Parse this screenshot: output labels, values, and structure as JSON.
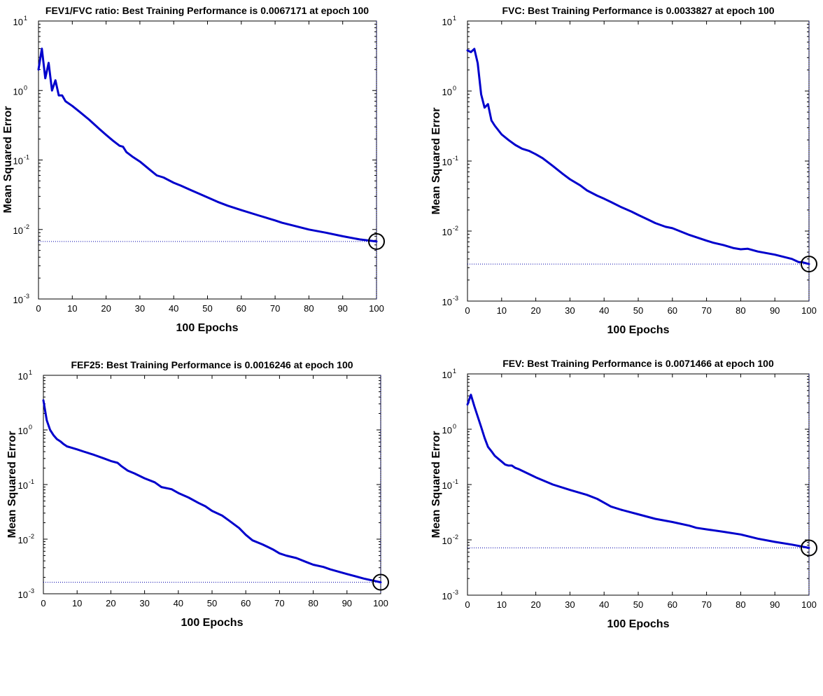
{
  "chart_data": [
    {
      "type": "line",
      "title": "FEV1/FVC ratio: Best Training Performance is 0.0067171 at epoch 100",
      "xlabel": "100 Epochs",
      "ylabel": "Mean Squared Error",
      "xlim": [
        0,
        100
      ],
      "ylim": [
        0.001,
        10
      ],
      "yscale": "log",
      "xticks": [
        "0",
        "10",
        "20",
        "30",
        "40",
        "50",
        "60",
        "70",
        "80",
        "90",
        "100"
      ],
      "ytick_base": "10",
      "ytick_exponents": [
        "1",
        "0",
        "-1",
        "-2",
        "-3"
      ],
      "best": {
        "epoch": 100,
        "value": 0.0067171
      },
      "series": [
        {
          "x": [
            0,
            1,
            2,
            3,
            4,
            5,
            6,
            7,
            8,
            10,
            12,
            15,
            18,
            20,
            22,
            24,
            25,
            26,
            28,
            30,
            33,
            35,
            36,
            37,
            40,
            42,
            45,
            48,
            50,
            53,
            56,
            60,
            65,
            70,
            72,
            75,
            80,
            85,
            90,
            95,
            100
          ],
          "y": [
            2.0,
            4.0,
            1.5,
            2.5,
            1.0,
            1.4,
            0.85,
            0.85,
            0.7,
            0.6,
            0.5,
            0.38,
            0.28,
            0.23,
            0.19,
            0.16,
            0.155,
            0.13,
            0.11,
            0.095,
            0.072,
            0.06,
            0.058,
            0.056,
            0.047,
            0.043,
            0.037,
            0.032,
            0.029,
            0.025,
            0.022,
            0.019,
            0.016,
            0.0135,
            0.0125,
            0.0115,
            0.01,
            0.009,
            0.008,
            0.0072,
            0.0067171
          ]
        }
      ]
    },
    {
      "type": "line",
      "title": "FVC: Best Training Performance is 0.0033827 at epoch 100",
      "xlabel": "100 Epochs",
      "ylabel": "Mean Squared Error",
      "xlim": [
        0,
        100
      ],
      "ylim": [
        0.001,
        10
      ],
      "yscale": "log",
      "xticks": [
        "0",
        "10",
        "20",
        "30",
        "40",
        "50",
        "60",
        "70",
        "80",
        "90",
        "100"
      ],
      "ytick_base": "10",
      "ytick_exponents": [
        "1",
        "0",
        "-1",
        "-2",
        "-3"
      ],
      "best": {
        "epoch": 100,
        "value": 0.0033827
      },
      "series": [
        {
          "x": [
            0,
            1,
            2,
            3,
            4,
            5,
            6,
            7,
            8,
            10,
            12,
            14,
            16,
            18,
            20,
            22,
            25,
            28,
            30,
            33,
            35,
            38,
            40,
            42,
            45,
            48,
            50,
            53,
            55,
            58,
            60,
            65,
            70,
            72,
            75,
            78,
            80,
            82,
            85,
            90,
            95,
            97,
            98,
            100
          ],
          "y": [
            3.8,
            3.6,
            4.0,
            2.5,
            0.9,
            0.58,
            0.65,
            0.38,
            0.32,
            0.24,
            0.2,
            0.17,
            0.15,
            0.14,
            0.125,
            0.11,
            0.085,
            0.065,
            0.055,
            0.045,
            0.038,
            0.032,
            0.029,
            0.026,
            0.022,
            0.019,
            0.017,
            0.0145,
            0.013,
            0.0115,
            0.011,
            0.0088,
            0.0073,
            0.0068,
            0.0063,
            0.0057,
            0.0055,
            0.0056,
            0.0051,
            0.0046,
            0.004,
            0.0036,
            0.0036,
            0.0033827
          ]
        }
      ]
    },
    {
      "type": "line",
      "title": "FEF25: Best Training Performance is 0.0016246 at epoch 100",
      "xlabel": "100 Epochs",
      "ylabel": "Mean Squared Error",
      "xlim": [
        0,
        100
      ],
      "ylim": [
        0.001,
        10
      ],
      "yscale": "log",
      "xticks": [
        "0",
        "10",
        "20",
        "30",
        "40",
        "50",
        "60",
        "70",
        "80",
        "90",
        "100"
      ],
      "ytick_base": "10",
      "ytick_exponents": [
        "1",
        "0",
        "-1",
        "-2",
        "-3"
      ],
      "best": {
        "epoch": 100,
        "value": 0.0016246
      },
      "series": [
        {
          "x": [
            0,
            1,
            2,
            3,
            4,
            5,
            6,
            7,
            8,
            10,
            12,
            15,
            18,
            20,
            22,
            23,
            25,
            27,
            30,
            33,
            35,
            38,
            40,
            43,
            46,
            48,
            50,
            53,
            55,
            58,
            60,
            62,
            65,
            68,
            70,
            72,
            75,
            78,
            80,
            83,
            85,
            90,
            95,
            100
          ],
          "y": [
            3.5,
            1.5,
            1.0,
            0.8,
            0.68,
            0.62,
            0.55,
            0.5,
            0.48,
            0.44,
            0.4,
            0.35,
            0.3,
            0.27,
            0.25,
            0.22,
            0.18,
            0.16,
            0.13,
            0.11,
            0.09,
            0.082,
            0.07,
            0.058,
            0.046,
            0.04,
            0.033,
            0.027,
            0.022,
            0.016,
            0.012,
            0.0095,
            0.008,
            0.0065,
            0.0055,
            0.005,
            0.0045,
            0.0038,
            0.0034,
            0.0031,
            0.0028,
            0.0023,
            0.0019,
            0.0016246
          ]
        }
      ]
    },
    {
      "type": "line",
      "title": "FEV: Best Training Performance is 0.0071466 at epoch 100",
      "xlabel": "100 Epochs",
      "ylabel": "Mean Squared Error",
      "xlim": [
        0,
        100
      ],
      "ylim": [
        0.001,
        10
      ],
      "yscale": "log",
      "xticks": [
        "0",
        "10",
        "20",
        "30",
        "40",
        "50",
        "60",
        "70",
        "80",
        "90",
        "100"
      ],
      "ytick_base": "10",
      "ytick_exponents": [
        "1",
        "0",
        "-1",
        "-2",
        "-3"
      ],
      "best": {
        "epoch": 100,
        "value": 0.0071466
      },
      "series": [
        {
          "x": [
            0,
            1,
            2,
            3,
            4,
            5,
            6,
            7,
            8,
            10,
            11,
            12,
            13,
            14,
            15,
            18,
            20,
            25,
            30,
            35,
            38,
            40,
            42,
            45,
            50,
            55,
            60,
            65,
            67,
            70,
            75,
            80,
            85,
            90,
            95,
            100
          ],
          "y": [
            2.8,
            4.2,
            2.6,
            1.7,
            1.1,
            0.7,
            0.48,
            0.4,
            0.33,
            0.26,
            0.23,
            0.22,
            0.22,
            0.2,
            0.19,
            0.155,
            0.135,
            0.1,
            0.08,
            0.065,
            0.055,
            0.047,
            0.04,
            0.035,
            0.029,
            0.024,
            0.021,
            0.018,
            0.0165,
            0.0155,
            0.014,
            0.0125,
            0.0105,
            0.0092,
            0.0082,
            0.0071466
          ]
        }
      ]
    }
  ]
}
